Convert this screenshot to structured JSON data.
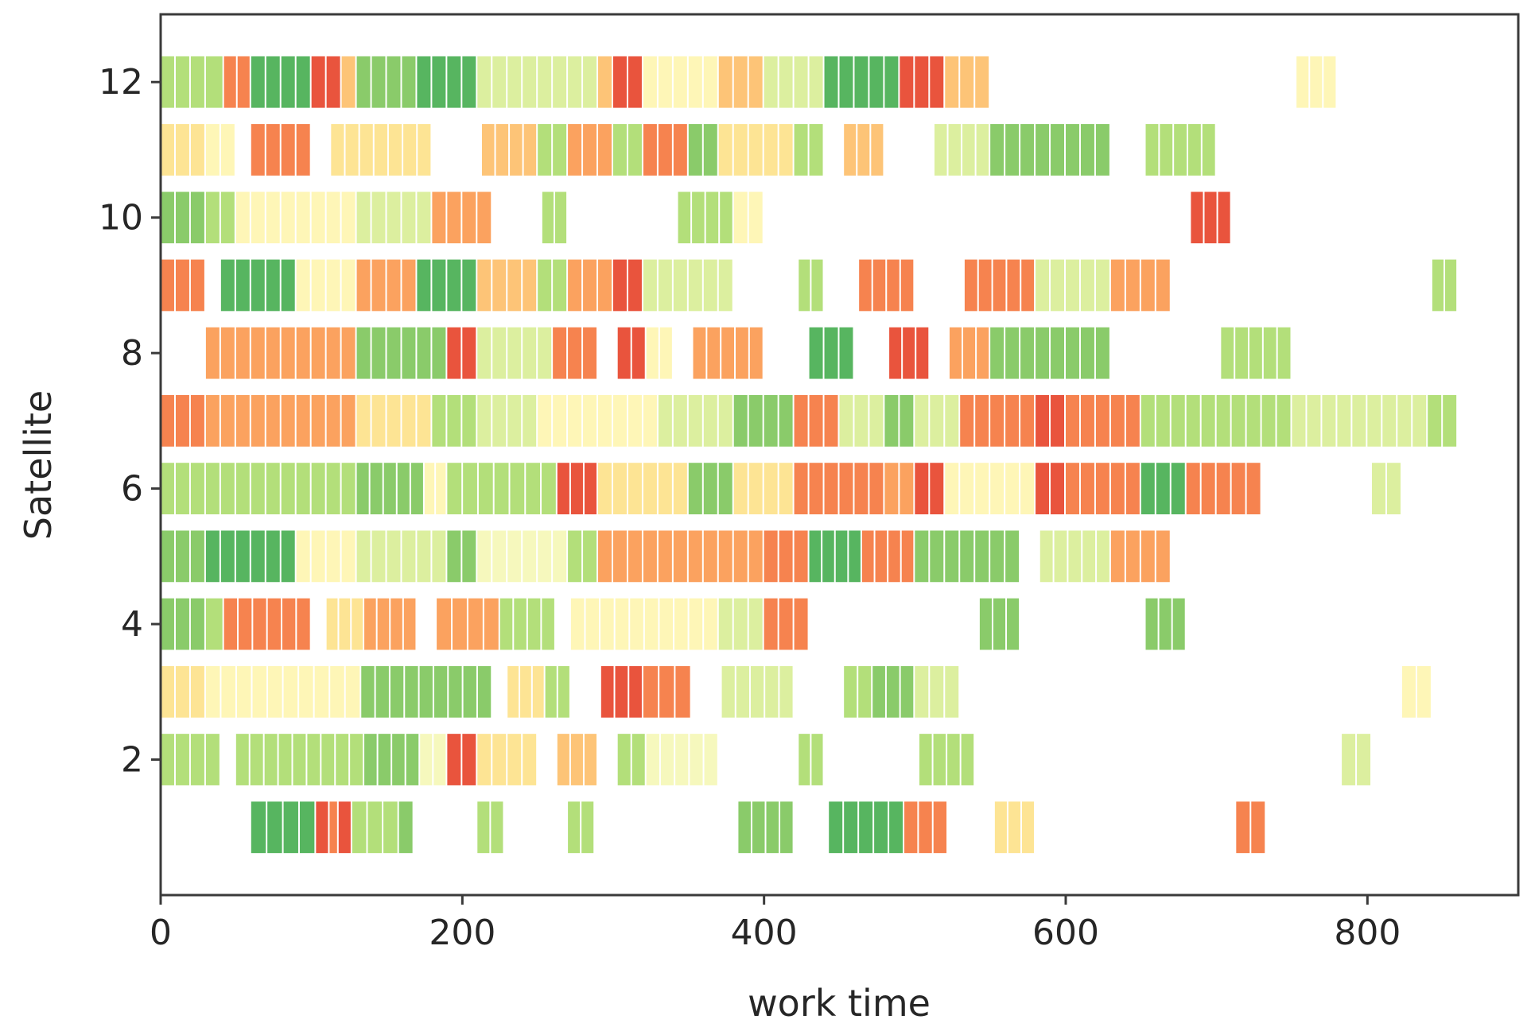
{
  "chart_data": {
    "type": "gantt",
    "title": "",
    "xlabel": "work time",
    "ylabel": "Satellite",
    "xlim": [
      0,
      900
    ],
    "ylim": [
      0,
      13
    ],
    "xticks": [
      0,
      200,
      400,
      600,
      800
    ],
    "yticks": [
      2,
      4,
      6,
      8,
      10,
      12
    ],
    "bar_height": 0.76,
    "colors": {
      "dg": "#57b560",
      "mg": "#8acb6a",
      "lg": "#b3df7a",
      "yg": "#dcef9f",
      "py": "#f6f8bd",
      "ly": "#fef6b7",
      "pa": "#fde494",
      "lo": "#fdc477",
      "or": "#fba25f",
      "do": "#f6834f",
      "rd": "#e9543d"
    },
    "tasks": [
      {
        "satellite": 1,
        "segments": [
          [
            60,
            103,
            "dg"
          ],
          [
            103,
            112,
            "rd"
          ],
          [
            112,
            118,
            "do"
          ],
          [
            118,
            127,
            "rd"
          ],
          [
            127,
            158,
            "lg"
          ],
          [
            158,
            168,
            "mg"
          ],
          [
            210,
            228,
            "lg"
          ],
          [
            270,
            288,
            "lg"
          ],
          [
            383,
            420,
            "mg"
          ],
          [
            443,
            493,
            "dg"
          ],
          [
            493,
            522,
            "do"
          ],
          [
            553,
            580,
            "pa"
          ],
          [
            713,
            733,
            "do"
          ]
        ]
      },
      {
        "satellite": 2,
        "segments": [
          [
            0,
            30,
            "lg"
          ],
          [
            30,
            40,
            "lg"
          ],
          [
            50,
            135,
            "lg"
          ],
          [
            135,
            172,
            "mg"
          ],
          [
            172,
            190,
            "py"
          ],
          [
            190,
            210,
            "rd"
          ],
          [
            210,
            250,
            "pa"
          ],
          [
            263,
            290,
            "lo"
          ],
          [
            303,
            322,
            "lg"
          ],
          [
            322,
            370,
            "py"
          ],
          [
            423,
            440,
            "lg"
          ],
          [
            503,
            540,
            "lg"
          ],
          [
            783,
            803,
            "yg"
          ]
        ]
      },
      {
        "satellite": 3,
        "segments": [
          [
            0,
            30,
            "pa"
          ],
          [
            30,
            133,
            "ly"
          ],
          [
            133,
            220,
            "mg"
          ],
          [
            230,
            255,
            "pa"
          ],
          [
            255,
            272,
            "lg"
          ],
          [
            292,
            320,
            "rd"
          ],
          [
            320,
            352,
            "do"
          ],
          [
            372,
            420,
            "yg"
          ],
          [
            453,
            472,
            "lg"
          ],
          [
            472,
            500,
            "mg"
          ],
          [
            500,
            530,
            "yg"
          ],
          [
            823,
            843,
            "ly"
          ]
        ]
      },
      {
        "satellite": 4,
        "segments": [
          [
            0,
            30,
            "mg"
          ],
          [
            30,
            42,
            "lg"
          ],
          [
            42,
            100,
            "do"
          ],
          [
            110,
            135,
            "pa"
          ],
          [
            135,
            170,
            "or"
          ],
          [
            183,
            225,
            "or"
          ],
          [
            225,
            262,
            "lg"
          ],
          [
            272,
            370,
            "ly"
          ],
          [
            370,
            400,
            "yg"
          ],
          [
            400,
            430,
            "do"
          ],
          [
            543,
            570,
            "mg"
          ],
          [
            653,
            680,
            "mg"
          ]
        ]
      },
      {
        "satellite": 5,
        "segments": [
          [
            0,
            30,
            "mg"
          ],
          [
            30,
            90,
            "dg"
          ],
          [
            90,
            130,
            "ly"
          ],
          [
            130,
            190,
            "yg"
          ],
          [
            190,
            210,
            "mg"
          ],
          [
            210,
            270,
            "py"
          ],
          [
            270,
            290,
            "lg"
          ],
          [
            290,
            400,
            "or"
          ],
          [
            400,
            430,
            "do"
          ],
          [
            430,
            465,
            "dg"
          ],
          [
            465,
            500,
            "do"
          ],
          [
            500,
            570,
            "mg"
          ],
          [
            583,
            630,
            "yg"
          ],
          [
            630,
            670,
            "or"
          ]
        ]
      },
      {
        "satellite": 6,
        "segments": [
          [
            0,
            30,
            "lg"
          ],
          [
            30,
            130,
            "lg"
          ],
          [
            130,
            175,
            "mg"
          ],
          [
            175,
            190,
            "ly"
          ],
          [
            190,
            263,
            "lg"
          ],
          [
            263,
            290,
            "rd"
          ],
          [
            290,
            350,
            "pa"
          ],
          [
            350,
            380,
            "mg"
          ],
          [
            380,
            420,
            "pa"
          ],
          [
            420,
            480,
            "do"
          ],
          [
            480,
            500,
            "or"
          ],
          [
            500,
            520,
            "rd"
          ],
          [
            520,
            580,
            "ly"
          ],
          [
            580,
            600,
            "rd"
          ],
          [
            600,
            650,
            "do"
          ],
          [
            650,
            680,
            "dg"
          ],
          [
            680,
            730,
            "do"
          ],
          [
            803,
            823,
            "yg"
          ]
        ]
      },
      {
        "satellite": 7,
        "segments": [
          [
            0,
            30,
            "do"
          ],
          [
            30,
            130,
            "or"
          ],
          [
            130,
            180,
            "pa"
          ],
          [
            180,
            210,
            "lg"
          ],
          [
            210,
            250,
            "yg"
          ],
          [
            250,
            330,
            "ly"
          ],
          [
            330,
            380,
            "yg"
          ],
          [
            380,
            420,
            "mg"
          ],
          [
            420,
            450,
            "do"
          ],
          [
            450,
            480,
            "yg"
          ],
          [
            480,
            500,
            "mg"
          ],
          [
            500,
            530,
            "yg"
          ],
          [
            530,
            580,
            "do"
          ],
          [
            580,
            600,
            "rd"
          ],
          [
            600,
            650,
            "do"
          ],
          [
            650,
            750,
            "lg"
          ],
          [
            750,
            840,
            "yg"
          ],
          [
            840,
            860,
            "lg"
          ]
        ]
      },
      {
        "satellite": 8,
        "segments": [
          [
            30,
            130,
            "or"
          ],
          [
            130,
            190,
            "mg"
          ],
          [
            190,
            210,
            "rd"
          ],
          [
            210,
            260,
            "yg"
          ],
          [
            260,
            290,
            "do"
          ],
          [
            303,
            322,
            "rd"
          ],
          [
            322,
            340,
            "ly"
          ],
          [
            353,
            400,
            "or"
          ],
          [
            430,
            460,
            "dg"
          ],
          [
            483,
            510,
            "rd"
          ],
          [
            523,
            550,
            "or"
          ],
          [
            550,
            630,
            "mg"
          ],
          [
            703,
            750,
            "lg"
          ]
        ]
      },
      {
        "satellite": 9,
        "segments": [
          [
            0,
            30,
            "do"
          ],
          [
            40,
            90,
            "dg"
          ],
          [
            90,
            130,
            "ly"
          ],
          [
            130,
            170,
            "or"
          ],
          [
            170,
            210,
            "dg"
          ],
          [
            210,
            250,
            "lo"
          ],
          [
            250,
            270,
            "lg"
          ],
          [
            270,
            300,
            "or"
          ],
          [
            300,
            320,
            "rd"
          ],
          [
            320,
            380,
            "yg"
          ],
          [
            423,
            440,
            "lg"
          ],
          [
            463,
            500,
            "do"
          ],
          [
            533,
            580,
            "do"
          ],
          [
            580,
            630,
            "yg"
          ],
          [
            630,
            670,
            "or"
          ],
          [
            843,
            860,
            "lg"
          ]
        ]
      },
      {
        "satellite": 10,
        "segments": [
          [
            0,
            30,
            "mg"
          ],
          [
            30,
            50,
            "lg"
          ],
          [
            50,
            130,
            "ly"
          ],
          [
            130,
            180,
            "yg"
          ],
          [
            180,
            220,
            "or"
          ],
          [
            253,
            270,
            "lg"
          ],
          [
            343,
            380,
            "lg"
          ],
          [
            380,
            400,
            "ly"
          ],
          [
            683,
            710,
            "rd"
          ]
        ]
      },
      {
        "satellite": 11,
        "segments": [
          [
            0,
            30,
            "pa"
          ],
          [
            30,
            50,
            "ly"
          ],
          [
            60,
            100,
            "do"
          ],
          [
            113,
            180,
            "pa"
          ],
          [
            213,
            250,
            "lo"
          ],
          [
            250,
            270,
            "lg"
          ],
          [
            270,
            300,
            "or"
          ],
          [
            300,
            320,
            "lg"
          ],
          [
            320,
            350,
            "do"
          ],
          [
            350,
            370,
            "mg"
          ],
          [
            370,
            420,
            "pa"
          ],
          [
            420,
            440,
            "lg"
          ],
          [
            453,
            480,
            "lo"
          ],
          [
            513,
            550,
            "yg"
          ],
          [
            550,
            630,
            "mg"
          ],
          [
            653,
            700,
            "lg"
          ]
        ]
      },
      {
        "satellite": 12,
        "segments": [
          [
            0,
            30,
            "lg"
          ],
          [
            30,
            42,
            "lg"
          ],
          [
            42,
            60,
            "do"
          ],
          [
            60,
            100,
            "dg"
          ],
          [
            100,
            120,
            "rd"
          ],
          [
            120,
            130,
            "lo"
          ],
          [
            130,
            170,
            "mg"
          ],
          [
            170,
            190,
            "dg"
          ],
          [
            190,
            210,
            "dg"
          ],
          [
            210,
            290,
            "yg"
          ],
          [
            290,
            300,
            "lo"
          ],
          [
            300,
            320,
            "rd"
          ],
          [
            320,
            370,
            "ly"
          ],
          [
            370,
            400,
            "lo"
          ],
          [
            400,
            440,
            "yg"
          ],
          [
            440,
            490,
            "dg"
          ],
          [
            490,
            520,
            "rd"
          ],
          [
            520,
            550,
            "lo"
          ],
          [
            753,
            780,
            "ly"
          ]
        ]
      }
    ]
  }
}
